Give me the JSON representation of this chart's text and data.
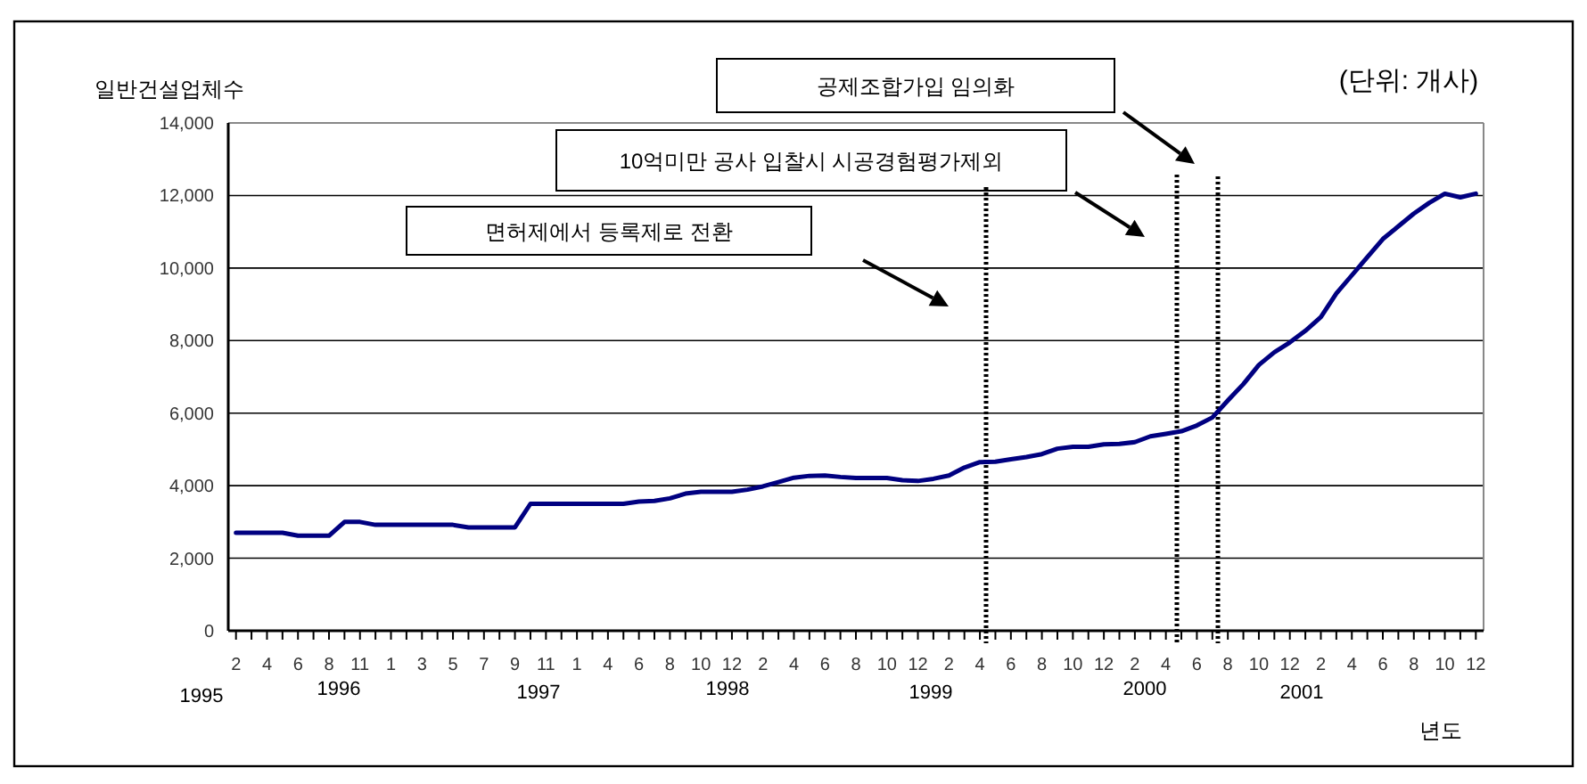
{
  "chart_data": {
    "type": "line",
    "ylabel": "일반건설업체수",
    "xlabel": "년도",
    "annotations": [
      "(단위: 개사)",
      "1995",
      "1996",
      "1997",
      "1998",
      "1999",
      "2000",
      "2001",
      "면허제에서 등록제로 전환",
      "10억미만 공사 입찰시 시공경험평가제외",
      "공제조합가입 임의화"
    ],
    "categories": [
      "2",
      null,
      "4",
      null,
      "6",
      null,
      "8",
      null,
      "11",
      null,
      "1",
      null,
      "3",
      null,
      "5",
      null,
      "7",
      null,
      "9",
      null,
      "11",
      null,
      "1",
      null,
      "4",
      null,
      "6",
      null,
      "8",
      null,
      "10",
      null,
      "12",
      null,
      "2",
      null,
      "4",
      null,
      "6",
      null,
      "8",
      null,
      "10",
      null,
      "12",
      null,
      "2",
      null,
      "4",
      null,
      "6",
      null,
      "8",
      null,
      "10",
      null,
      "12",
      null,
      "2",
      null,
      "4",
      null,
      "6",
      null,
      "8",
      null,
      "10",
      null,
      "12",
      null,
      "2",
      null,
      "4",
      null,
      "6",
      null,
      "8",
      null,
      "10",
      null,
      "12"
    ],
    "series": [
      {
        "color": "#000080",
        "values": [
          2700,
          2700,
          2700,
          2700,
          2620,
          2620,
          2620,
          3000,
          3000,
          2920,
          2920,
          2920,
          2920,
          2920,
          2920,
          2850,
          2850,
          2850,
          2850,
          3500,
          3500,
          3500,
          3500,
          3500,
          3500,
          3500,
          3560,
          3580,
          3650,
          3780,
          3830,
          3830,
          3830,
          3890,
          3980,
          4100,
          4220,
          4270,
          4280,
          4240,
          4210,
          4210,
          4210,
          4150,
          4130,
          4190,
          4280,
          4500,
          4650,
          4660,
          4730,
          4790,
          4870,
          5020,
          5070,
          5070,
          5140,
          5150,
          5200,
          5360,
          5430,
          5500,
          5660,
          5880,
          6350,
          6800,
          7330,
          7680,
          7950,
          8270,
          8650,
          9300,
          9800,
          10300,
          10800,
          11150,
          11500,
          11800,
          12050,
          11950,
          12050
        ]
      }
    ],
    "ylim": [
      0,
      14000
    ],
    "yticks": [
      {
        "value": 0,
        "label": "0"
      },
      {
        "value": 2000,
        "label": "2,000"
      },
      {
        "value": 4000,
        "label": "4,000"
      },
      {
        "value": 6000,
        "label": "6,000"
      },
      {
        "value": 8000,
        "label": "8,000"
      },
      {
        "value": 10000,
        "label": "10,000"
      },
      {
        "value": 12000,
        "label": "12,000"
      },
      {
        "value": 14000,
        "label": "14,000"
      }
    ],
    "grid": "y"
  }
}
